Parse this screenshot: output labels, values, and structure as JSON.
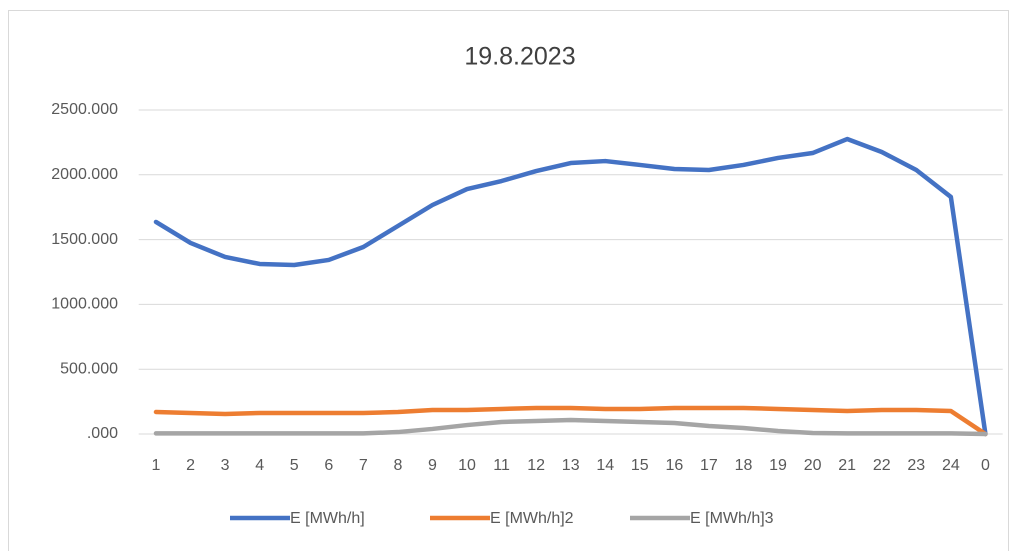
{
  "chart_data": {
    "type": "line",
    "title": "19.8.2023",
    "categories": [
      "1",
      "2",
      "3",
      "4",
      "5",
      "6",
      "7",
      "8",
      "9",
      "10",
      "11",
      "12",
      "13",
      "14",
      "15",
      "16",
      "17",
      "18",
      "19",
      "20",
      "21",
      "22",
      "23",
      "24",
      "0"
    ],
    "series": [
      {
        "name": "E [MWh/h]",
        "color": "#4472c4",
        "values": [
          1636,
          1474,
          1366,
          1312,
          1304,
          1343,
          1443,
          1605,
          1767,
          1890,
          1952,
          2029,
          2091,
          2106,
          2076,
          2045,
          2037,
          2076,
          2130,
          2168,
          2276,
          2176,
          2037,
          1829,
          0
        ]
      },
      {
        "name": "E [MWh/h]2",
        "color": "#ed7d31",
        "values": [
          170,
          162,
          154,
          162,
          162,
          162,
          162,
          170,
          185,
          185,
          193,
          201,
          201,
          193,
          193,
          201,
          201,
          201,
          193,
          185,
          177,
          185,
          185,
          177,
          0
        ]
      },
      {
        "name": "E [MWh/h]3",
        "color": "#a5a5a5",
        "values": [
          5,
          5,
          5,
          5,
          5,
          5,
          5,
          15,
          39,
          69,
          93,
          100,
          108,
          100,
          93,
          85,
          62,
          46,
          23,
          8,
          5,
          5,
          5,
          5,
          0
        ]
      }
    ],
    "ylim": [
      0,
      2500
    ],
    "yticks": [
      {
        "value": 0,
        "label": ".000"
      },
      {
        "value": 500,
        "label": "500.000"
      },
      {
        "value": 1000,
        "label": "1000.000"
      },
      {
        "value": 1500,
        "label": "1500.000"
      },
      {
        "value": 2000,
        "label": "2000.000"
      },
      {
        "value": 2500,
        "label": "2500.000"
      }
    ],
    "grid": true,
    "legend": "bottom"
  }
}
